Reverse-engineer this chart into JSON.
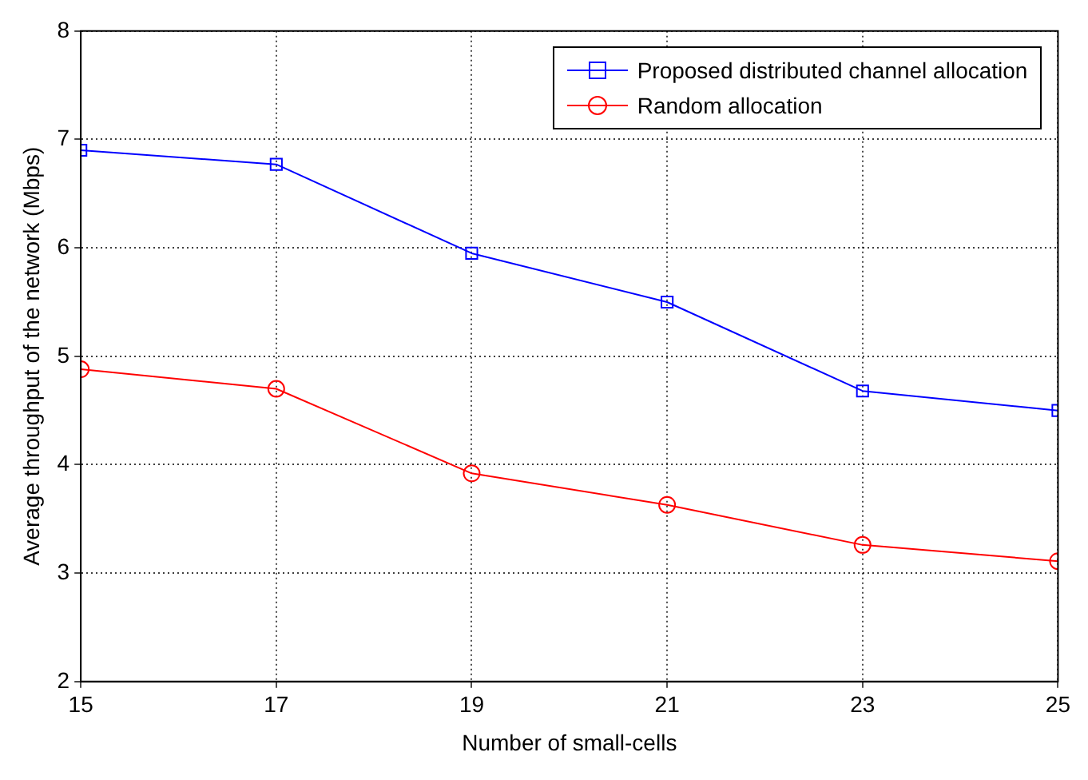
{
  "chart_data": {
    "type": "line",
    "xlabel": "Number of small-cells",
    "ylabel": "Average throughput of the network (Mbps)",
    "x": [
      15,
      17,
      19,
      21,
      23,
      25
    ],
    "series": [
      {
        "name": "Proposed distributed channel allocation",
        "color": "#0000ff",
        "marker": "square",
        "values": [
          6.9,
          6.77,
          5.95,
          5.5,
          4.68,
          4.5
        ]
      },
      {
        "name": "Random allocation",
        "color": "#ff0000",
        "marker": "circle",
        "values": [
          4.88,
          4.7,
          3.92,
          3.63,
          3.26,
          3.11
        ]
      }
    ],
    "xlim": [
      15,
      25
    ],
    "xticks": [
      15,
      17,
      19,
      21,
      23,
      25
    ],
    "ylim": [
      2,
      8
    ],
    "yticks": [
      2,
      3,
      4,
      5,
      6,
      7,
      8
    ],
    "grid": true,
    "legend": "top right",
    "line_style": "solid"
  }
}
